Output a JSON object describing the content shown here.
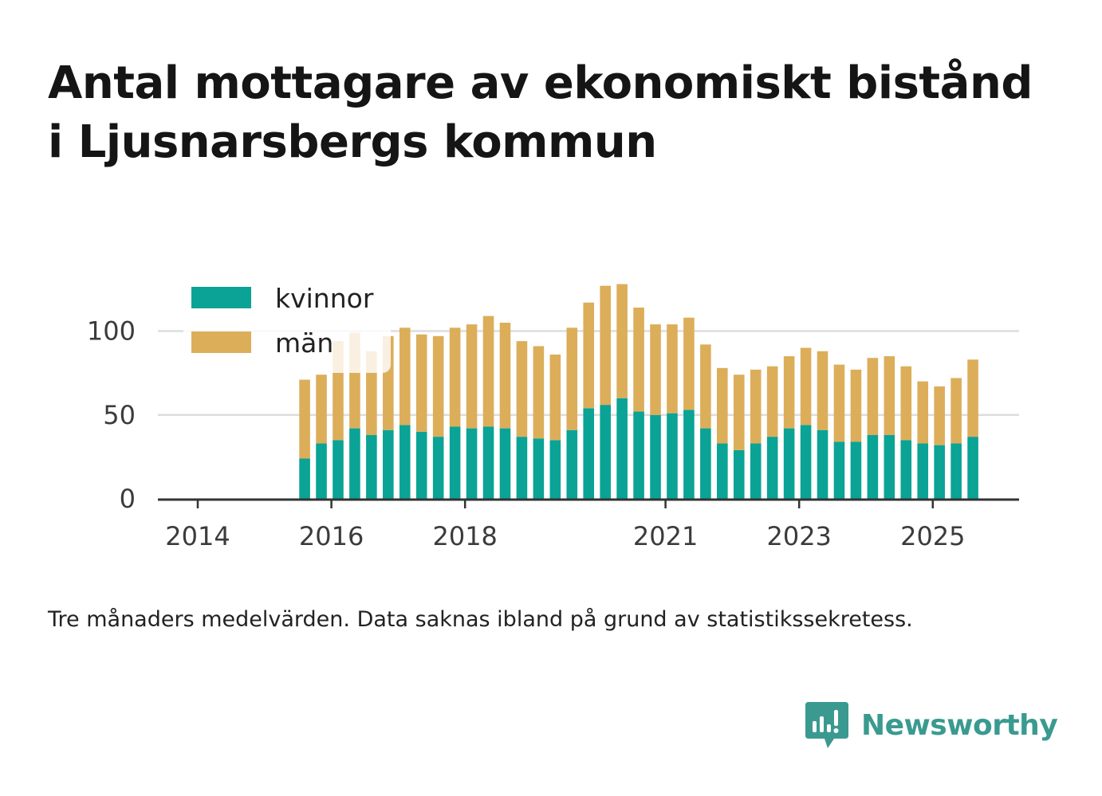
{
  "title_lines": [
    "Antal mottagare av ekonomiskt bistånd",
    "i Ljusnarsbergs kommun"
  ],
  "caption": "Tre månaders medelvärden. Data saknas ibland på grund av statistikssekretess.",
  "brand": {
    "name": "Newsworthy",
    "color": "#3a9a90"
  },
  "colors": {
    "kvinnor": "#0aa396",
    "man": "#dcae5a",
    "grid": "#dddddd",
    "axis": "#333333"
  },
  "chart_data": {
    "type": "bar",
    "stacked": true,
    "title": "Antal mottagare av ekonomiskt bistånd i Ljusnarsbergs kommun",
    "xlabel": "",
    "ylabel": "",
    "ylim": [
      0,
      125
    ],
    "yticks": [
      0,
      50,
      100
    ],
    "xlim": [
      2013.6,
      2026.3
    ],
    "xticks": [
      2014,
      2016,
      2018,
      2021,
      2023,
      2025
    ],
    "legend": {
      "position": "top-left"
    },
    "x": [
      2015.6,
      2015.85,
      2016.1,
      2016.35,
      2016.6,
      2016.85,
      2017.1,
      2017.35,
      2017.6,
      2017.85,
      2018.1,
      2018.35,
      2018.6,
      2018.85,
      2019.1,
      2019.35,
      2019.6,
      2019.85,
      2020.1,
      2020.35,
      2020.6,
      2020.85,
      2021.1,
      2021.35,
      2021.6,
      2021.85,
      2022.1,
      2022.35,
      2022.6,
      2022.85,
      2023.1,
      2023.35,
      2023.6,
      2023.85,
      2024.1,
      2024.35,
      2024.6,
      2024.85,
      2025.1,
      2025.35,
      2025.6
    ],
    "series": [
      {
        "name": "kvinnor",
        "values": [
          24,
          33,
          35,
          42,
          38,
          41,
          44,
          40,
          37,
          43,
          42,
          43,
          42,
          37,
          36,
          35,
          41,
          54,
          56,
          60,
          52,
          50,
          51,
          53,
          42,
          33,
          29,
          33,
          37,
          42,
          44,
          41,
          34,
          34,
          38,
          38,
          35,
          33,
          32,
          33,
          37
        ]
      },
      {
        "name": "män",
        "values": [
          47,
          41,
          59,
          57,
          50,
          56,
          58,
          58,
          60,
          59,
          62,
          66,
          63,
          57,
          55,
          51,
          61,
          63,
          71,
          68,
          62,
          54,
          53,
          55,
          50,
          45,
          45,
          44,
          42,
          43,
          46,
          47,
          46,
          43,
          46,
          47,
          44,
          37,
          35,
          39,
          46
        ]
      }
    ]
  }
}
